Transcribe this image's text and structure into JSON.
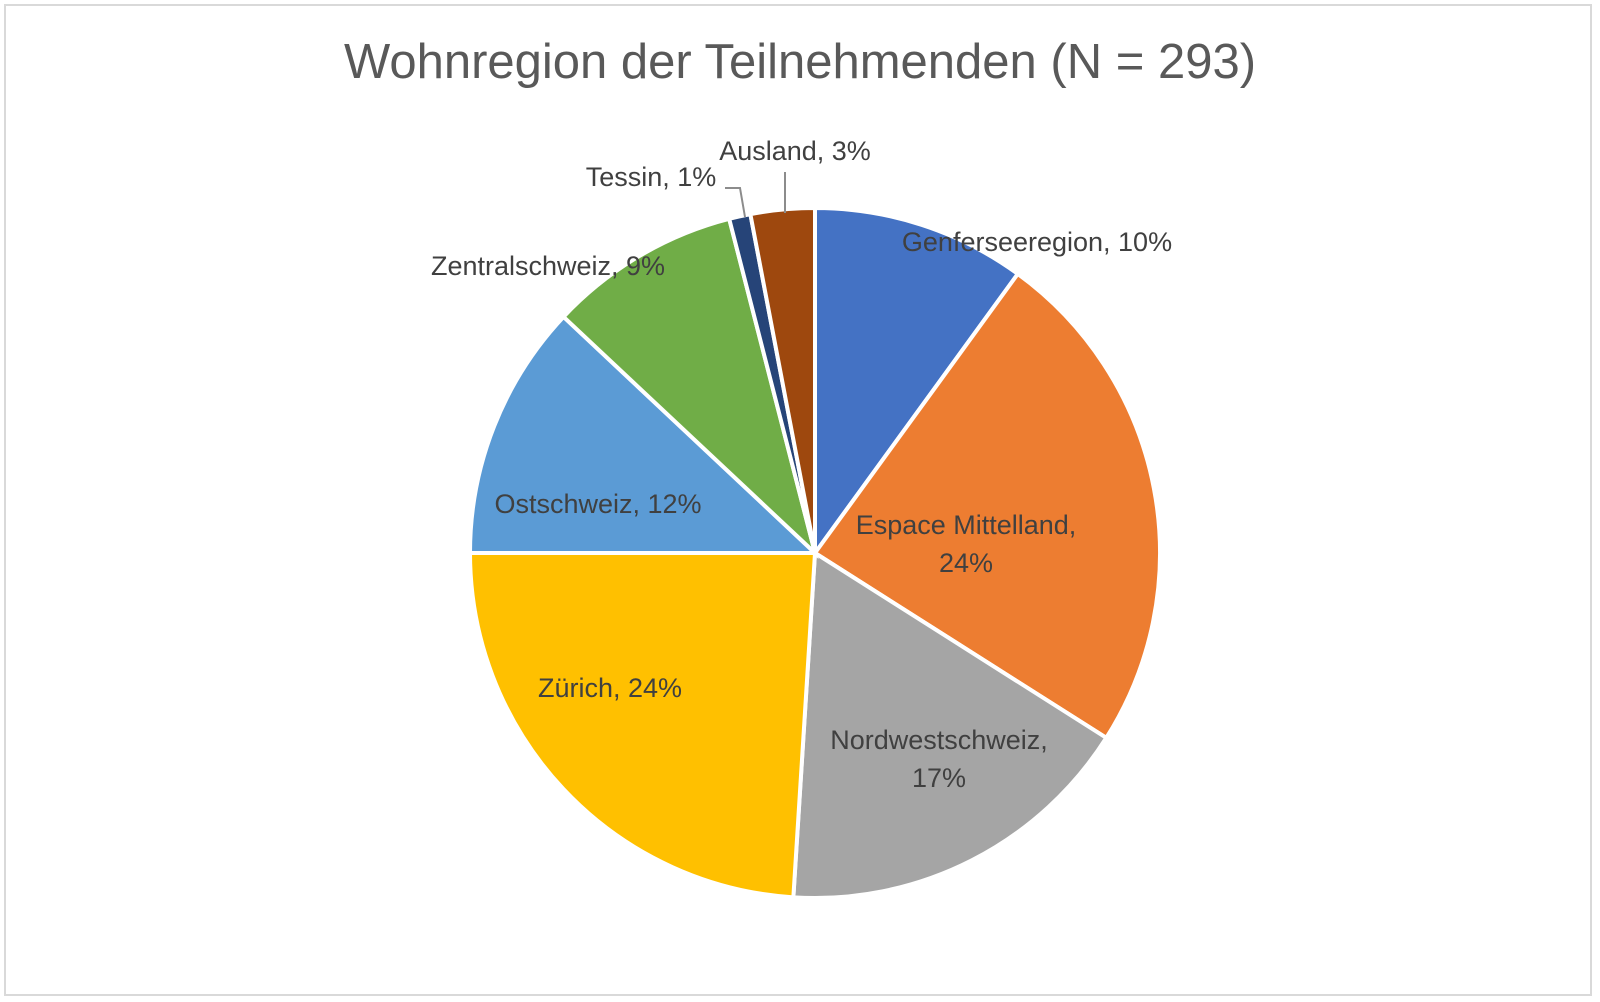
{
  "chart_data": {
    "type": "pie",
    "title": "Wohnregion der Teilnehmenden (N = 293)",
    "start_angle_deg": 0,
    "direction": "clockwise",
    "legend": "none",
    "slices": [
      {
        "name": "Genferseeregion",
        "value": 10,
        "label": "Genferseeregion, 10%",
        "color": "#4472C4"
      },
      {
        "name": "Espace Mittelland",
        "value": 24,
        "label": "Espace Mittelland, 24%",
        "label_lines": [
          "Espace Mittelland,",
          "24%"
        ],
        "color": "#ED7D31"
      },
      {
        "name": "Nordwestschweiz",
        "value": 17,
        "label": "Nordwestschweiz, 17%",
        "label_lines": [
          "Nordwestschweiz,",
          "17%"
        ],
        "color": "#A5A5A5"
      },
      {
        "name": "Zürich",
        "value": 24,
        "label": "Zürich, 24%",
        "color": "#FFC000"
      },
      {
        "name": "Ostschweiz",
        "value": 12,
        "label": "Ostschweiz, 12%",
        "color": "#5B9BD5"
      },
      {
        "name": "Zentralschweiz",
        "value": 9,
        "label": "Zentralschweiz, 9%",
        "color": "#70AD47"
      },
      {
        "name": "Tessin",
        "value": 1,
        "label": "Tessin, 1%",
        "color": "#264478"
      },
      {
        "name": "Ausland",
        "value": 3,
        "label": "Ausland, 3%",
        "color": "#9E480E"
      }
    ]
  }
}
